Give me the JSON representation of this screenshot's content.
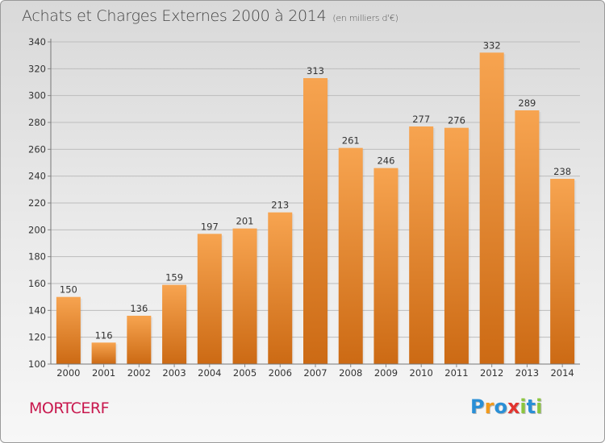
{
  "header": {
    "title": "Achats et Charges Externes 2000 à 2014",
    "subtitle": "(en milliers d'€)"
  },
  "footer": {
    "place": "MORTCERF"
  },
  "logo": {
    "text": "Proxiti",
    "letters": [
      {
        "ch": "P",
        "color": "#2a8fd6"
      },
      {
        "ch": "r",
        "color": "#f29a1b"
      },
      {
        "ch": "o",
        "color": "#2a8fd6"
      },
      {
        "ch": "x",
        "color": "#e2342f"
      },
      {
        "ch": "i",
        "color": "#8cc63f"
      },
      {
        "ch": "t",
        "color": "#2a8fd6"
      },
      {
        "ch": "i",
        "color": "#8cc63f"
      }
    ]
  },
  "colors": {
    "bar_light": "#f7a450",
    "bar_dark": "#cc6a14",
    "grid": "#bdbdbd",
    "axis_text": "#333333"
  },
  "chart_data": {
    "type": "bar",
    "categories": [
      "2000",
      "2001",
      "2002",
      "2003",
      "2004",
      "2005",
      "2006",
      "2007",
      "2008",
      "2009",
      "2010",
      "2011",
      "2012",
      "2013",
      "2014"
    ],
    "values": [
      150,
      116,
      136,
      159,
      197,
      201,
      213,
      313,
      261,
      246,
      277,
      276,
      332,
      289,
      238
    ],
    "yticks": [
      100,
      120,
      140,
      160,
      180,
      200,
      220,
      240,
      260,
      280,
      300,
      320,
      340
    ],
    "ylim": [
      100,
      340
    ],
    "grid": true,
    "legend": "none"
  }
}
